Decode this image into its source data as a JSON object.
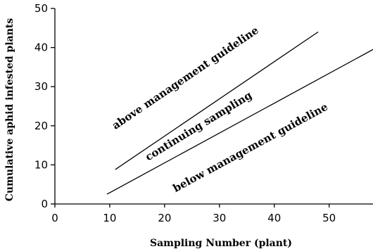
{
  "chart_data": {
    "type": "line",
    "title": "",
    "xlabel": "Sampling Number (plant)",
    "ylabel": "Cumulative aphid infested plants",
    "xlim": [
      0,
      58
    ],
    "ylim": [
      0,
      50
    ],
    "x_ticks": [
      "0",
      "10",
      "20",
      "30",
      "40",
      "50"
    ],
    "y_ticks": [
      "0",
      "10",
      "20",
      "30",
      "40",
      "50"
    ],
    "grid": false,
    "legend": "none",
    "series": [
      {
        "x": [
          11,
          48
        ],
        "y": [
          8.8,
          44
        ],
        "color": "#000000"
      },
      {
        "x": [
          9.5,
          58
        ],
        "y": [
          2.5,
          39.5
        ],
        "color": "#000000"
      }
    ],
    "annotations": [
      {
        "text": "above management guideline",
        "x": 11,
        "y": 19
      },
      {
        "text": "continuing sampling",
        "x": 17,
        "y": 11
      },
      {
        "text": "below management guideline",
        "x": 22,
        "y": 3
      }
    ]
  }
}
